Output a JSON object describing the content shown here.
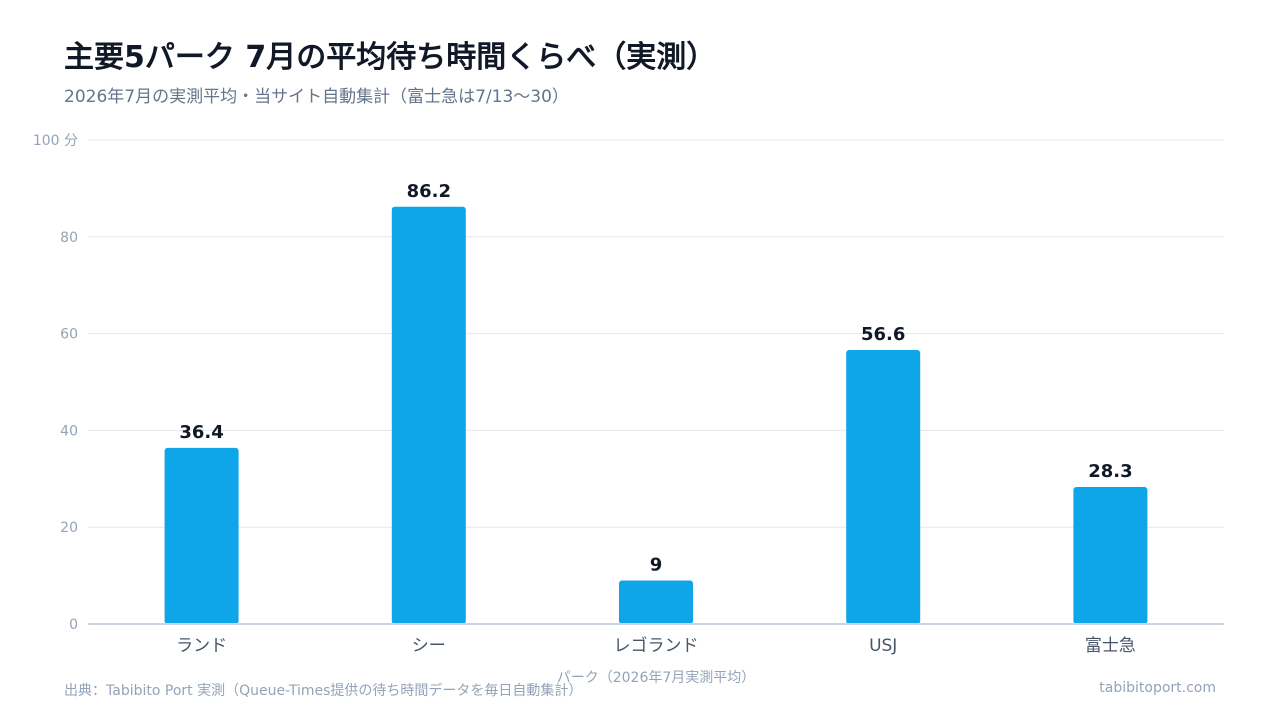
{
  "header": {
    "title": "主要5パーク 7月の平均待ち時間くらべ（実測）",
    "subtitle": "2026年7月の実測平均・当サイト自動集計（富士急は7/13〜30）"
  },
  "footer": {
    "source": "出典：Tabibito Port 実測（Queue-Times提供の待ち時間データを毎日自動集計）",
    "site": "tabibitoport.com"
  },
  "colors": {
    "bar": "#0ea5e9",
    "grid": "#e5e7eb",
    "axis": "#cbd5e1",
    "tick": "#94a3b8",
    "category": "#475569",
    "value_label": "#111827"
  },
  "chart_data": {
    "type": "bar",
    "categories": [
      "ランド",
      "シー",
      "レゴランド",
      "USJ",
      "富士急"
    ],
    "values": [
      36.4,
      86.2,
      9,
      56.6,
      28.3
    ],
    "value_labels": [
      "36.4",
      "86.2",
      "9",
      "56.6",
      "28.3"
    ],
    "xlabel": "パーク（2026年7月実測平均）",
    "ylabel": "",
    "yticks": [
      "0",
      "20",
      "40",
      "60",
      "80",
      "100 分"
    ],
    "ytick_values": [
      0,
      20,
      40,
      60,
      80,
      100
    ],
    "ylim": [
      0,
      100
    ],
    "grid": true,
    "legend": "none"
  }
}
